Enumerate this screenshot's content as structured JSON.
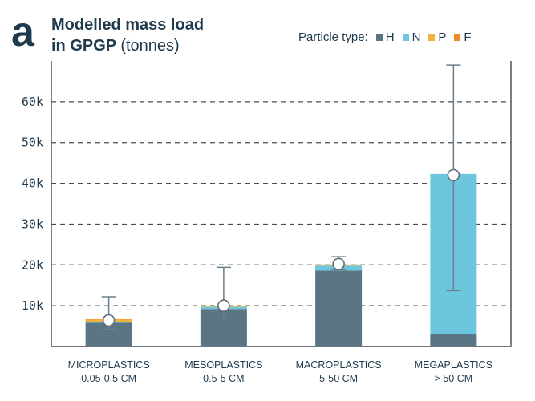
{
  "panel_label": "a",
  "title": {
    "line1": "Modelled mass load",
    "line2_bold": "in GPGP",
    "line2_light": "(tonnes)"
  },
  "legend": {
    "label": "Particle type:",
    "items": [
      {
        "key": "H",
        "color": "#5b7585"
      },
      {
        "key": "N",
        "color": "#6cc6dd"
      },
      {
        "key": "P",
        "color": "#f2b33d"
      },
      {
        "key": "F",
        "color": "#f08a24"
      }
    ]
  },
  "chart_data": {
    "type": "bar",
    "stacked": true,
    "title": "Modelled mass load in GPGP (tonnes)",
    "ylabel": "",
    "ylim": [
      0,
      70000
    ],
    "yticks": [
      10000,
      20000,
      30000,
      40000,
      50000,
      60000
    ],
    "ytick_labels": [
      "10k",
      "20k",
      "30k",
      "40k",
      "50k",
      "60k"
    ],
    "grid": "dashed-horizontal",
    "categories": [
      {
        "line1": "MICROPLASTICS",
        "line2": "0.05-0.5 CM"
      },
      {
        "line1": "MESOPLASTICS",
        "line2": "0.5-5 CM"
      },
      {
        "line1": "MACROPLASTICS",
        "line2": "5-50 CM"
      },
      {
        "line1": "MEGAPLASTICS",
        "line2": "> 50 CM"
      }
    ],
    "series": [
      {
        "name": "H",
        "color": "#5b7585",
        "values": [
          5800,
          9200,
          18600,
          3000
        ]
      },
      {
        "name": "N",
        "color": "#6cc6dd",
        "values": [
          200,
          500,
          1200,
          39300
        ]
      },
      {
        "name": "P",
        "color": "#f2b33d",
        "values": [
          600,
          200,
          300,
          0
        ]
      },
      {
        "name": "F",
        "color": "#f08a24",
        "values": [
          100,
          0,
          0,
          0
        ]
      }
    ],
    "estimate": [
      6400,
      10000,
      20200,
      42000
    ],
    "error_low": [
      4200,
      7000,
      18800,
      13700
    ],
    "error_high": [
      12200,
      19400,
      22000,
      69000
    ]
  }
}
